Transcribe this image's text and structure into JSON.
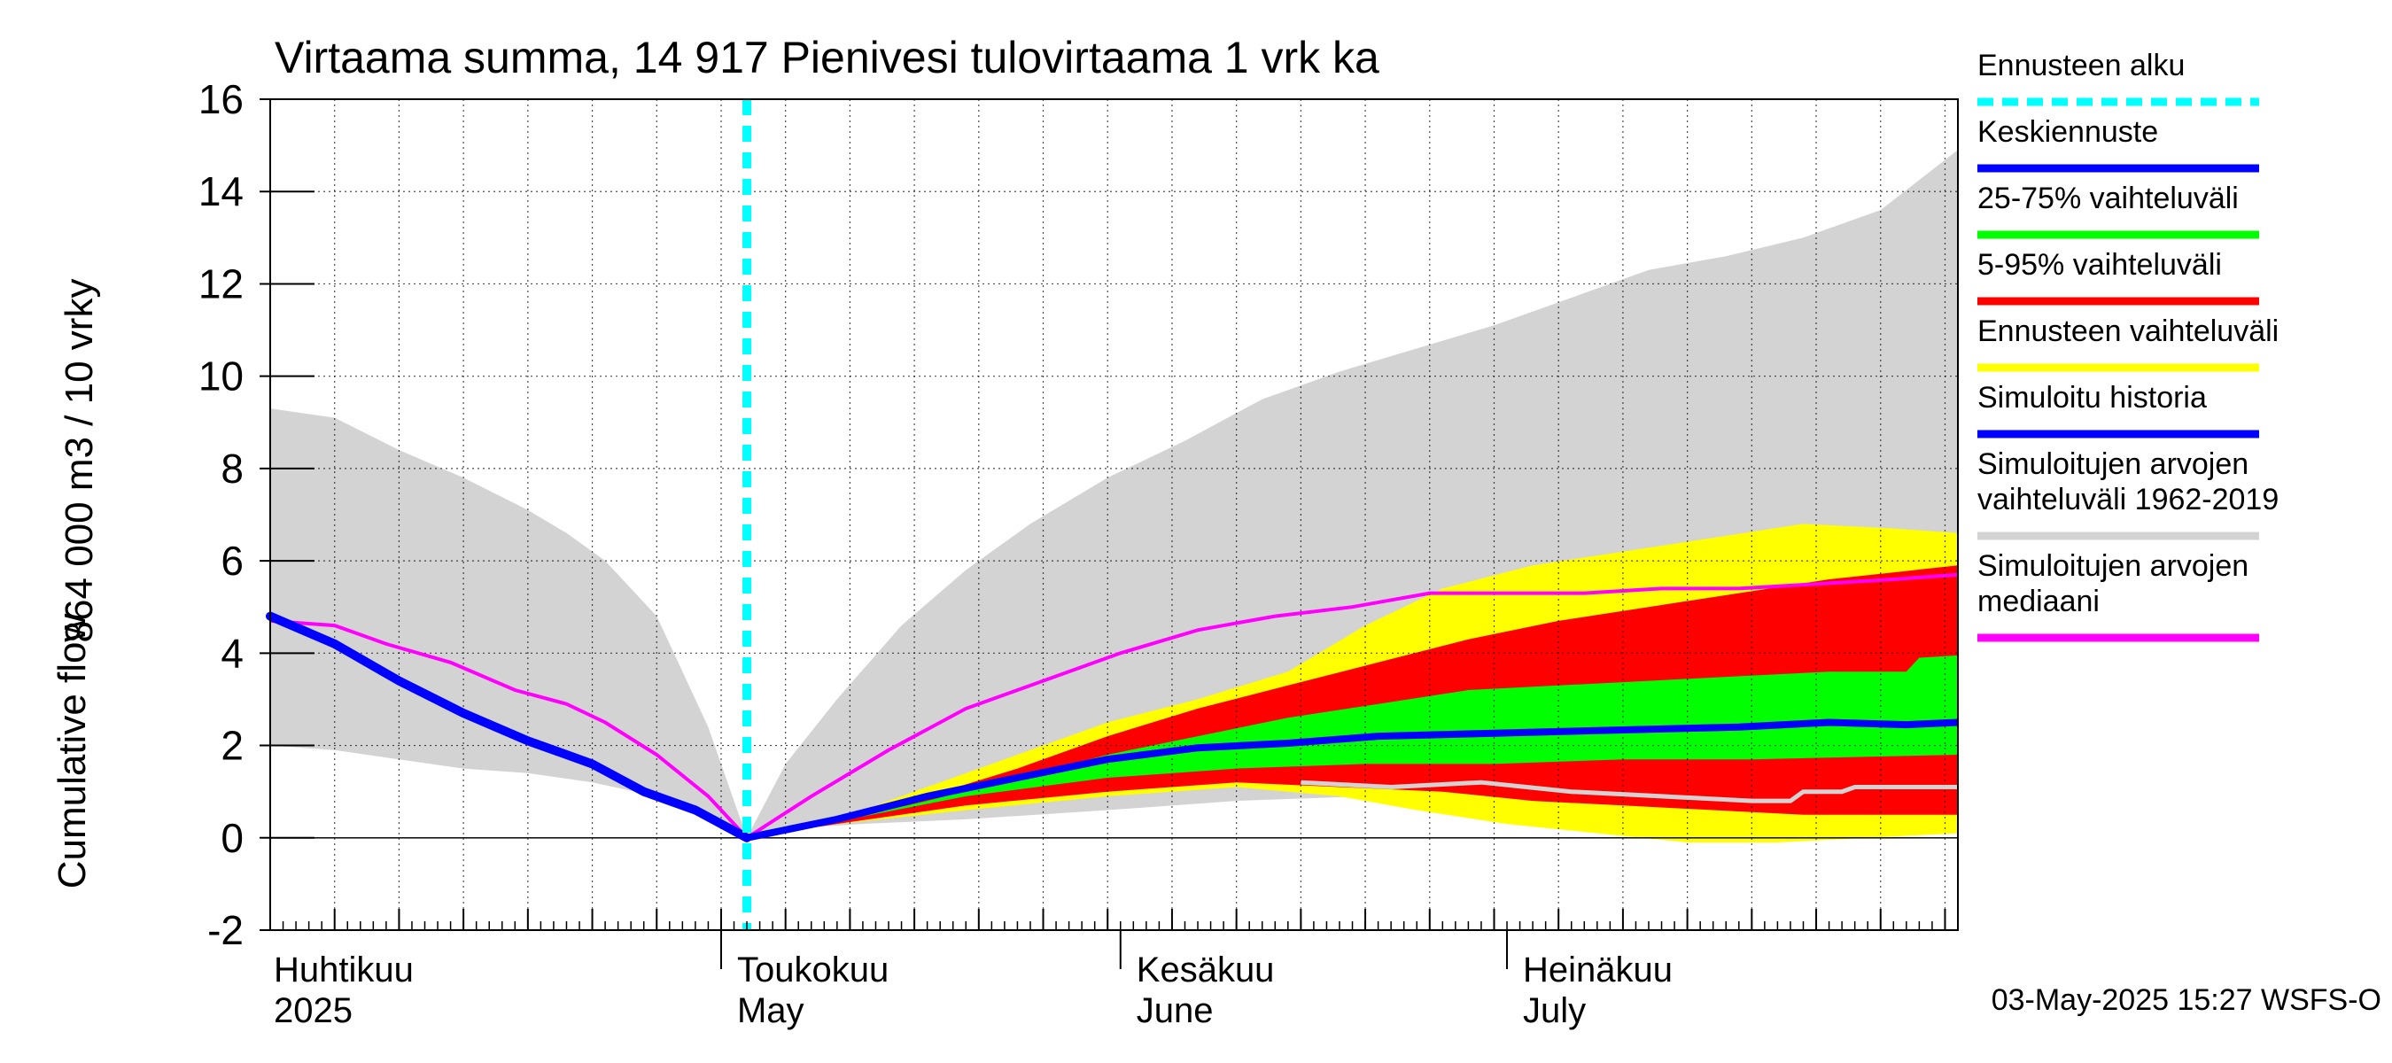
{
  "chart_data": {
    "type": "area",
    "title": "Virtaama summa, 14 917 Pienivesi tulovirtaama 1 vrk ka",
    "ylabel_line1": "864 000 m3 / 10 vrky",
    "ylabel_line2": "Cumulative flow",
    "ylim": [
      -2,
      16
    ],
    "yticks": [
      -2,
      0,
      2,
      4,
      6,
      8,
      10,
      12,
      14,
      16
    ],
    "x_range": [
      "2025-03-27",
      "2025-08-05"
    ],
    "forecast_start": "2025-05-03",
    "month_labels": [
      {
        "date": "2025-04-01",
        "fi": "Huhtikuu",
        "en": "2025"
      },
      {
        "date": "2025-05-01",
        "fi": "Toukokuu",
        "en": "May"
      },
      {
        "date": "2025-06-01",
        "fi": "Kesäkuu",
        "en": "June"
      },
      {
        "date": "2025-07-01",
        "fi": "Heinäkuu",
        "en": "July"
      }
    ],
    "timestamp": "03-May-2025 15:27 WSFS-O",
    "legend": [
      {
        "label": "Ennusteen alku",
        "color": "#00ffff",
        "style": "dashed"
      },
      {
        "label": "Keskiennuste",
        "color": "#0000ff",
        "style": "line"
      },
      {
        "label": "25-75% vaihteluväli",
        "color": "#00ff00",
        "style": "line"
      },
      {
        "label": "5-95% vaihteluväli",
        "color": "#ff0000",
        "style": "line"
      },
      {
        "label": "Ennusteen vaihteluväli",
        "color": "#ffff00",
        "style": "line"
      },
      {
        "label": "Simuloitu historia",
        "color": "#0000ff",
        "style": "line"
      },
      {
        "label": "Simuloitujen arvojen vaihteluväli 1962-2019",
        "label_lines": [
          "Simuloitujen arvojen",
          "vaihteluväli 1962-2019"
        ],
        "color": "#d3d3d3",
        "style": "line"
      },
      {
        "label": "Simuloitujen arvojen mediaani",
        "label_lines": [
          "Simuloitujen arvojen",
          "mediaani"
        ],
        "color": "#ff00ff",
        "style": "line"
      }
    ],
    "series": {
      "hist_range": {
        "color": "#d3d3d3",
        "upper": [
          [
            "2025-03-27",
            9.3
          ],
          [
            "2025-04-01",
            9.1
          ],
          [
            "2025-04-06",
            8.4
          ],
          [
            "2025-04-11",
            7.8
          ],
          [
            "2025-04-16",
            7.1
          ],
          [
            "2025-04-19",
            6.6
          ],
          [
            "2025-04-22",
            6.0
          ],
          [
            "2025-04-26",
            4.8
          ],
          [
            "2025-04-30",
            2.4
          ],
          [
            "2025-05-03",
            0
          ],
          [
            "2025-05-06",
            1.6
          ],
          [
            "2025-05-10",
            3.0
          ],
          [
            "2025-05-15",
            4.6
          ],
          [
            "2025-05-20",
            5.8
          ],
          [
            "2025-05-25",
            6.8
          ],
          [
            "2025-05-31",
            7.8
          ],
          [
            "2025-06-06",
            8.6
          ],
          [
            "2025-06-12",
            9.5
          ],
          [
            "2025-06-18",
            10.1
          ],
          [
            "2025-06-24",
            10.6
          ],
          [
            "2025-06-30",
            11.1
          ],
          [
            "2025-07-06",
            11.7
          ],
          [
            "2025-07-12",
            12.3
          ],
          [
            "2025-07-18",
            12.6
          ],
          [
            "2025-07-24",
            13.0
          ],
          [
            "2025-07-30",
            13.6
          ],
          [
            "2025-08-05",
            14.9
          ]
        ],
        "lower": [
          [
            "2025-03-27",
            2.0
          ],
          [
            "2025-04-01",
            1.9
          ],
          [
            "2025-04-06",
            1.7
          ],
          [
            "2025-04-11",
            1.5
          ],
          [
            "2025-04-16",
            1.4
          ],
          [
            "2025-04-21",
            1.2
          ],
          [
            "2025-04-26",
            0.9
          ],
          [
            "2025-04-30",
            0.4
          ],
          [
            "2025-05-03",
            0
          ],
          [
            "2025-05-06",
            0.2
          ],
          [
            "2025-05-12",
            0.3
          ],
          [
            "2025-05-20",
            0.4
          ],
          [
            "2025-05-31",
            0.6
          ],
          [
            "2025-06-10",
            0.8
          ],
          [
            "2025-06-20",
            0.9
          ],
          [
            "2025-06-30",
            1.0
          ],
          [
            "2025-07-10",
            1.0
          ],
          [
            "2025-07-20",
            1.0
          ],
          [
            "2025-08-05",
            1.0
          ]
        ]
      },
      "forecast_range": {
        "color": "#ffff00",
        "upper": [
          [
            "2025-05-03",
            0
          ],
          [
            "2025-05-10",
            0.4
          ],
          [
            "2025-05-17",
            1.1
          ],
          [
            "2025-05-24",
            1.8
          ],
          [
            "2025-05-31",
            2.5
          ],
          [
            "2025-06-07",
            3.0
          ],
          [
            "2025-06-14",
            3.6
          ],
          [
            "2025-06-20",
            4.6
          ],
          [
            "2025-06-26",
            5.4
          ],
          [
            "2025-07-03",
            5.9
          ],
          [
            "2025-07-10",
            6.2
          ],
          [
            "2025-07-17",
            6.5
          ],
          [
            "2025-07-24",
            6.8
          ],
          [
            "2025-07-31",
            6.7
          ],
          [
            "2025-08-05",
            6.6
          ]
        ],
        "lower": [
          [
            "2025-05-03",
            0
          ],
          [
            "2025-05-10",
            0.3
          ],
          [
            "2025-05-20",
            0.6
          ],
          [
            "2025-05-31",
            0.9
          ],
          [
            "2025-06-10",
            1.1
          ],
          [
            "2025-06-18",
            0.9
          ],
          [
            "2025-06-24",
            0.6
          ],
          [
            "2025-07-01",
            0.3
          ],
          [
            "2025-07-08",
            0.1
          ],
          [
            "2025-07-15",
            -0.1
          ],
          [
            "2025-07-22",
            -0.1
          ],
          [
            "2025-07-29",
            0.0
          ],
          [
            "2025-08-05",
            0.1
          ]
        ]
      },
      "p5_95": {
        "color": "#ff0000",
        "upper": [
          [
            "2025-05-03",
            0
          ],
          [
            "2025-05-10",
            0.4
          ],
          [
            "2025-05-17",
            0.9
          ],
          [
            "2025-05-24",
            1.5
          ],
          [
            "2025-05-31",
            2.2
          ],
          [
            "2025-06-07",
            2.8
          ],
          [
            "2025-06-14",
            3.3
          ],
          [
            "2025-06-21",
            3.8
          ],
          [
            "2025-06-28",
            4.3
          ],
          [
            "2025-07-05",
            4.7
          ],
          [
            "2025-07-12",
            5.0
          ],
          [
            "2025-07-19",
            5.3
          ],
          [
            "2025-07-26",
            5.6
          ],
          [
            "2025-08-05",
            5.9
          ]
        ],
        "lower": [
          [
            "2025-05-03",
            0
          ],
          [
            "2025-05-10",
            0.3
          ],
          [
            "2025-05-20",
            0.7
          ],
          [
            "2025-05-31",
            1.0
          ],
          [
            "2025-06-10",
            1.2
          ],
          [
            "2025-06-18",
            1.1
          ],
          [
            "2025-06-26",
            1.0
          ],
          [
            "2025-07-03",
            0.8
          ],
          [
            "2025-07-10",
            0.7
          ],
          [
            "2025-07-17",
            0.6
          ],
          [
            "2025-07-24",
            0.5
          ],
          [
            "2025-08-05",
            0.5
          ]
        ]
      },
      "p25_75": {
        "color": "#00ff00",
        "upper": [
          [
            "2025-05-03",
            0
          ],
          [
            "2025-05-10",
            0.35
          ],
          [
            "2025-05-17",
            0.8
          ],
          [
            "2025-05-24",
            1.3
          ],
          [
            "2025-05-31",
            1.8
          ],
          [
            "2025-06-07",
            2.2
          ],
          [
            "2025-06-14",
            2.6
          ],
          [
            "2025-06-21",
            2.9
          ],
          [
            "2025-06-28",
            3.2
          ],
          [
            "2025-07-05",
            3.3
          ],
          [
            "2025-07-12",
            3.4
          ],
          [
            "2025-07-19",
            3.5
          ],
          [
            "2025-07-26",
            3.6
          ],
          [
            "2025-08-01",
            3.6
          ],
          [
            "2025-08-02",
            3.9
          ],
          [
            "2025-08-05",
            3.95
          ]
        ],
        "lower": [
          [
            "2025-05-03",
            0
          ],
          [
            "2025-05-10",
            0.35
          ],
          [
            "2025-05-20",
            0.9
          ],
          [
            "2025-05-31",
            1.3
          ],
          [
            "2025-06-10",
            1.5
          ],
          [
            "2025-06-20",
            1.6
          ],
          [
            "2025-06-30",
            1.6
          ],
          [
            "2025-07-10",
            1.7
          ],
          [
            "2025-07-20",
            1.7
          ],
          [
            "2025-08-05",
            1.8
          ]
        ]
      },
      "median_forecast": {
        "color": "#0000ff",
        "points": [
          [
            "2025-05-03",
            0
          ],
          [
            "2025-05-10",
            0.4
          ],
          [
            "2025-05-17",
            0.9
          ],
          [
            "2025-05-24",
            1.3
          ],
          [
            "2025-05-31",
            1.7
          ],
          [
            "2025-06-07",
            1.95
          ],
          [
            "2025-06-14",
            2.05
          ],
          [
            "2025-06-21",
            2.2
          ],
          [
            "2025-06-28",
            2.25
          ],
          [
            "2025-07-05",
            2.3
          ],
          [
            "2025-07-12",
            2.35
          ],
          [
            "2025-07-19",
            2.4
          ],
          [
            "2025-07-26",
            2.5
          ],
          [
            "2025-08-01",
            2.45
          ],
          [
            "2025-08-05",
            2.5
          ]
        ]
      },
      "simulated_history": {
        "color": "#0000ff",
        "points": [
          [
            "2025-03-27",
            4.8
          ],
          [
            "2025-04-01",
            4.2
          ],
          [
            "2025-04-06",
            3.4
          ],
          [
            "2025-04-11",
            2.7
          ],
          [
            "2025-04-16",
            2.1
          ],
          [
            "2025-04-21",
            1.6
          ],
          [
            "2025-04-25",
            1.0
          ],
          [
            "2025-04-29",
            0.6
          ],
          [
            "2025-05-01",
            0.3
          ],
          [
            "2025-05-03",
            0
          ]
        ]
      },
      "hist_median": {
        "color": "#ff00ff",
        "points": [
          [
            "2025-03-27",
            4.7
          ],
          [
            "2025-04-01",
            4.6
          ],
          [
            "2025-04-05",
            4.2
          ],
          [
            "2025-04-10",
            3.8
          ],
          [
            "2025-04-15",
            3.2
          ],
          [
            "2025-04-19",
            2.9
          ],
          [
            "2025-04-22",
            2.5
          ],
          [
            "2025-04-26",
            1.8
          ],
          [
            "2025-04-30",
            0.9
          ],
          [
            "2025-05-03",
            0
          ],
          [
            "2025-05-08",
            0.9
          ],
          [
            "2025-05-14",
            1.9
          ],
          [
            "2025-05-20",
            2.8
          ],
          [
            "2025-05-26",
            3.4
          ],
          [
            "2025-06-01",
            4.0
          ],
          [
            "2025-06-07",
            4.5
          ],
          [
            "2025-06-13",
            4.8
          ],
          [
            "2025-06-19",
            5.0
          ],
          [
            "2025-06-25",
            5.3
          ],
          [
            "2025-07-01",
            5.3
          ],
          [
            "2025-07-07",
            5.3
          ],
          [
            "2025-07-13",
            5.4
          ],
          [
            "2025-07-19",
            5.4
          ],
          [
            "2025-07-25",
            5.5
          ],
          [
            "2025-07-31",
            5.6
          ],
          [
            "2025-08-05",
            5.7
          ]
        ]
      },
      "hist_lower_line": {
        "color": "#d3d3d3",
        "points": [
          [
            "2025-06-15",
            1.2
          ],
          [
            "2025-06-22",
            1.1
          ],
          [
            "2025-06-29",
            1.2
          ],
          [
            "2025-07-06",
            1.0
          ],
          [
            "2025-07-13",
            0.9
          ],
          [
            "2025-07-20",
            0.8
          ],
          [
            "2025-07-23",
            0.8
          ],
          [
            "2025-07-24",
            1.0
          ],
          [
            "2025-07-27",
            1.0
          ],
          [
            "2025-07-28",
            1.1
          ],
          [
            "2025-08-05",
            1.1
          ]
        ]
      }
    }
  }
}
